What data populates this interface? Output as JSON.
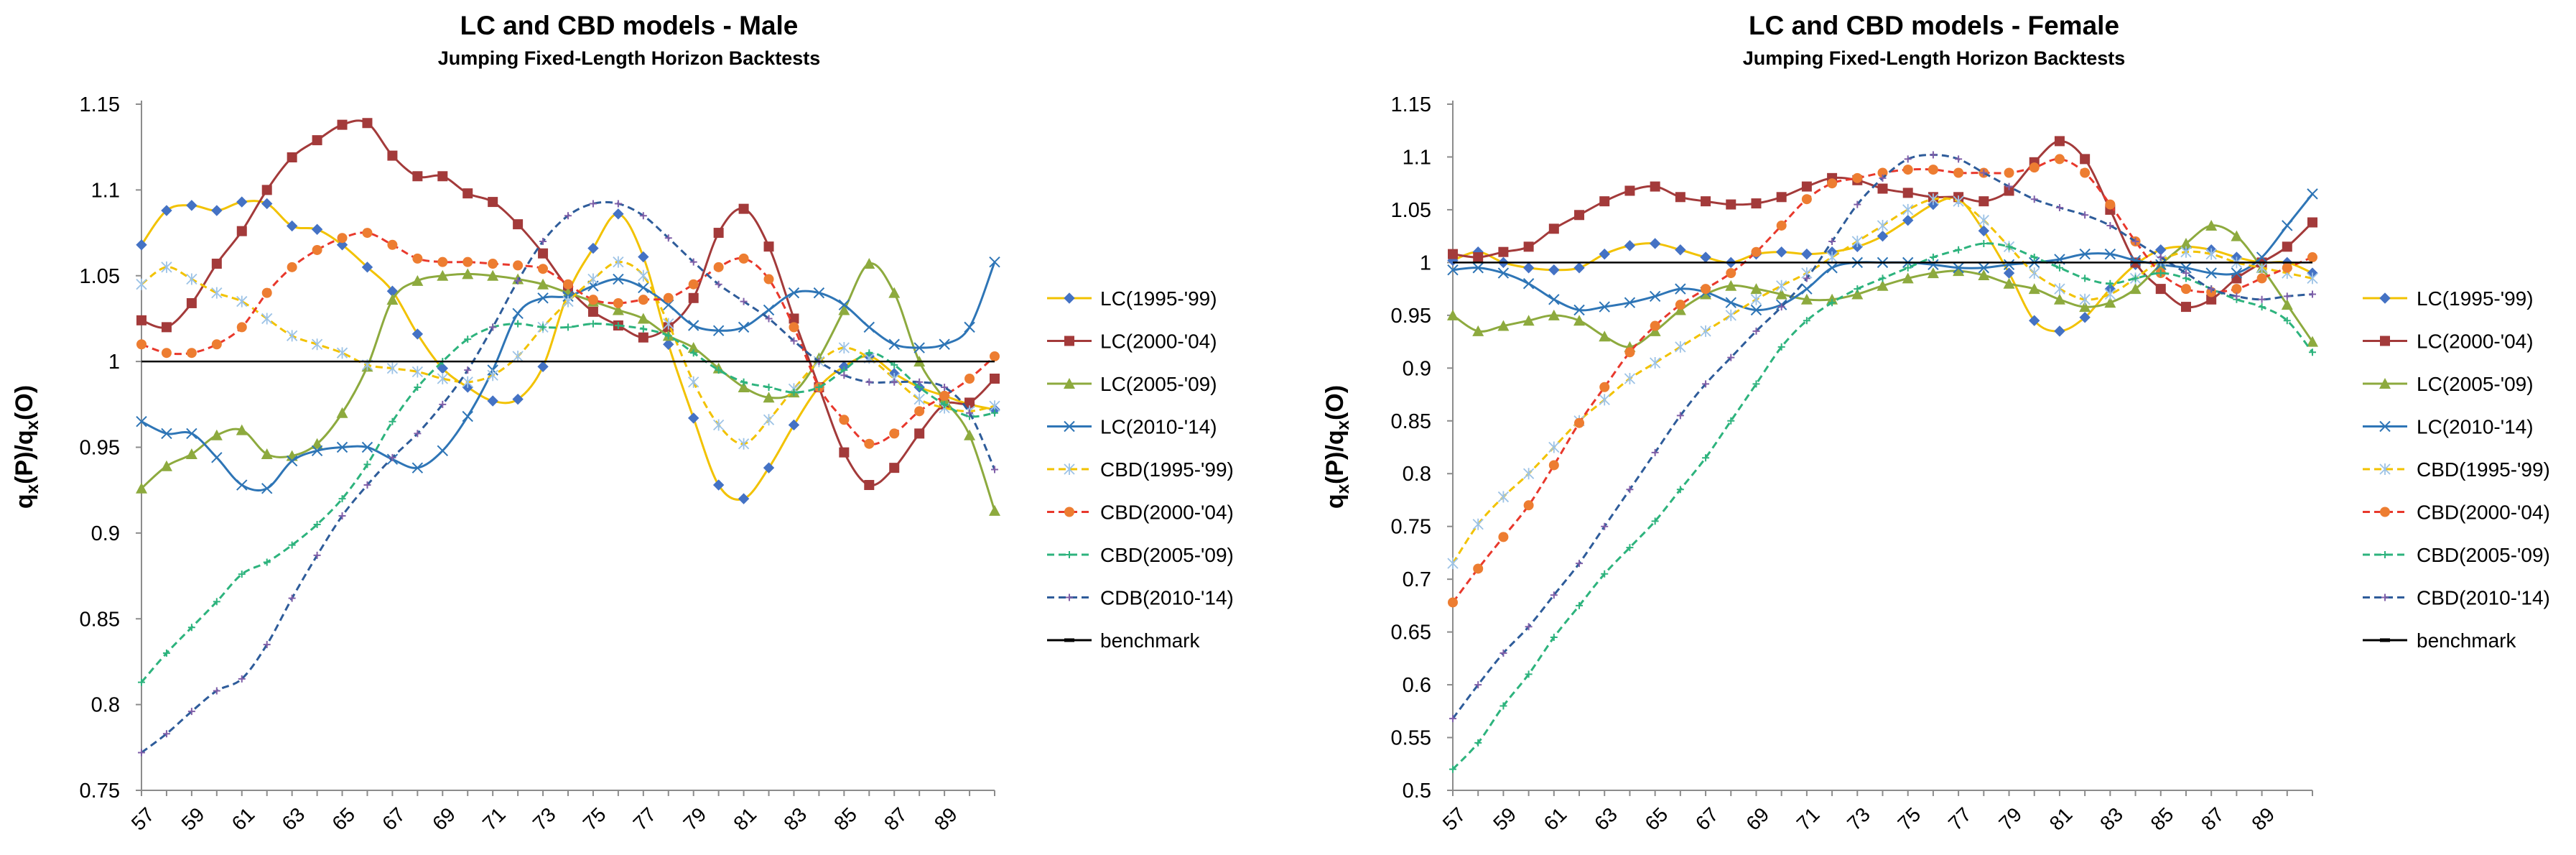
{
  "chart_data": [
    {
      "type": "line",
      "title": "LC and CBD models - Male",
      "subtitle": "Jumping Fixed-Length Horizon Backtests",
      "xlabel": "",
      "ylabel": "qₓ(P)/qₓ(O)",
      "ylabel_main": "q",
      "ylabel_sub": "x",
      "ylabel_mid": "(P)/q",
      "ylabel_sub2": "x",
      "ylabel_end": "(O)",
      "ylim": [
        0.75,
        1.15
      ],
      "yticks": [
        "0.75",
        "0.8",
        "0.85",
        "0.9",
        "0.95",
        "1",
        "1.05",
        "1.1",
        "1.15"
      ],
      "ytick_values": [
        0.75,
        0.8,
        0.85,
        0.9,
        0.95,
        1.0,
        1.05,
        1.1,
        1.15
      ],
      "xlim": [
        57,
        91
      ],
      "xticks": [
        "57",
        "59",
        "61",
        "63",
        "65",
        "67",
        "69",
        "71",
        "73",
        "75",
        "77",
        "79",
        "81",
        "83",
        "85",
        "87",
        "89"
      ],
      "xtick_values": [
        57,
        59,
        61,
        63,
        65,
        67,
        69,
        71,
        73,
        75,
        77,
        79,
        81,
        83,
        85,
        87,
        89
      ],
      "x": [
        57,
        58,
        59,
        60,
        61,
        62,
        63,
        64,
        65,
        66,
        67,
        68,
        69,
        70,
        71,
        72,
        73,
        74,
        75,
        76,
        77,
        78,
        79,
        80,
        81,
        82,
        83,
        84,
        85,
        86,
        87,
        88,
        89,
        90,
        91
      ],
      "legend_position": "right",
      "series": [
        {
          "name": "LC(1995-'99)",
          "color": "#F2C200",
          "style": "solid",
          "marker": "diamond",
          "marker_color": "#4472C4",
          "values": [
            1.068,
            1.088,
            1.091,
            1.088,
            1.093,
            1.092,
            1.079,
            1.077,
            1.068,
            1.055,
            1.041,
            1.016,
            0.996,
            0.985,
            0.977,
            0.978,
            0.997,
            1.04,
            1.066,
            1.086,
            1.061,
            1.01,
            0.967,
            0.928,
            0.92,
            0.938,
            0.963,
            0.985,
            0.997,
            1.003,
            0.993,
            0.985,
            0.98,
            0.975,
            0.972
          ]
        },
        {
          "name": "LC(2000-'04)",
          "color": "#A33A3A",
          "style": "solid",
          "marker": "square",
          "marker_color": "#A33A3A",
          "values": [
            1.024,
            1.02,
            1.034,
            1.057,
            1.076,
            1.1,
            1.119,
            1.129,
            1.138,
            1.139,
            1.12,
            1.108,
            1.108,
            1.098,
            1.093,
            1.08,
            1.063,
            1.043,
            1.029,
            1.021,
            1.014,
            1.02,
            1.037,
            1.075,
            1.089,
            1.067,
            1.025,
            0.985,
            0.947,
            0.928,
            0.938,
            0.958,
            0.975,
            0.976,
            0.99
          ]
        },
        {
          "name": "LC(2005-'09)",
          "color": "#8DAA3E",
          "style": "solid",
          "marker": "triangle",
          "marker_color": "#8DAA3E",
          "values": [
            0.926,
            0.939,
            0.946,
            0.957,
            0.96,
            0.946,
            0.945,
            0.952,
            0.97,
            0.997,
            1.036,
            1.047,
            1.05,
            1.051,
            1.05,
            1.048,
            1.045,
            1.04,
            1.035,
            1.03,
            1.025,
            1.015,
            1.008,
            0.996,
            0.985,
            0.979,
            0.982,
            1.002,
            1.03,
            1.057,
            1.04,
            1.0,
            0.978,
            0.957,
            0.913
          ]
        },
        {
          "name": "LC(2010-'14)",
          "color": "#2E75B6",
          "style": "solid",
          "marker": "x",
          "marker_color": "#2E75B6",
          "values": [
            0.965,
            0.958,
            0.958,
            0.944,
            0.928,
            0.926,
            0.942,
            0.948,
            0.95,
            0.95,
            0.943,
            0.938,
            0.948,
            0.968,
            0.995,
            1.028,
            1.037,
            1.038,
            1.044,
            1.048,
            1.043,
            1.033,
            1.021,
            1.018,
            1.02,
            1.03,
            1.04,
            1.04,
            1.033,
            1.02,
            1.01,
            1.008,
            1.01,
            1.02,
            1.058
          ]
        },
        {
          "name": "CBD(1995-'99)",
          "color": "#F2C200",
          "style": "dash",
          "marker": "star",
          "marker_color": "#9DC3E6",
          "values": [
            1.045,
            1.055,
            1.048,
            1.04,
            1.035,
            1.025,
            1.015,
            1.01,
            1.005,
            0.998,
            0.996,
            0.994,
            0.99,
            0.988,
            0.992,
            1.003,
            1.02,
            1.035,
            1.048,
            1.058,
            1.05,
            1.022,
            0.988,
            0.963,
            0.952,
            0.966,
            0.984,
            1.0,
            1.008,
            1.002,
            0.99,
            0.978,
            0.973,
            0.971,
            0.974
          ]
        },
        {
          "name": "CBD(2000-'04)",
          "color": "#E8382C",
          "style": "dash",
          "marker": "circle",
          "marker_color": "#ED7D31",
          "values": [
            1.01,
            1.005,
            1.005,
            1.01,
            1.02,
            1.04,
            1.055,
            1.065,
            1.072,
            1.075,
            1.068,
            1.06,
            1.058,
            1.058,
            1.057,
            1.056,
            1.054,
            1.045,
            1.036,
            1.034,
            1.036,
            1.037,
            1.045,
            1.055,
            1.06,
            1.048,
            1.02,
            0.985,
            0.966,
            0.952,
            0.958,
            0.971,
            0.98,
            0.99,
            1.003
          ]
        },
        {
          "name": "CBD(2005-'09)",
          "color": "#2DB37D",
          "style": "dash",
          "marker": "plus",
          "marker_color": "#2DB37D",
          "values": [
            0.813,
            0.83,
            0.845,
            0.86,
            0.876,
            0.883,
            0.893,
            0.905,
            0.92,
            0.94,
            0.965,
            0.985,
            1.0,
            1.013,
            1.02,
            1.022,
            1.02,
            1.02,
            1.022,
            1.021,
            1.019,
            1.015,
            1.005,
            0.995,
            0.988,
            0.985,
            0.982,
            0.985,
            0.995,
            1.005,
            0.998,
            0.985,
            0.975,
            0.968,
            0.97
          ]
        },
        {
          "name": "CDB(2010-'14)",
          "color": "#2E5C9A",
          "style": "dash",
          "marker": "plus",
          "marker_color": "#7F5FA8",
          "values": [
            0.772,
            0.783,
            0.796,
            0.808,
            0.815,
            0.835,
            0.862,
            0.887,
            0.91,
            0.928,
            0.944,
            0.958,
            0.975,
            0.995,
            1.02,
            1.047,
            1.07,
            1.085,
            1.092,
            1.092,
            1.085,
            1.072,
            1.058,
            1.045,
            1.035,
            1.025,
            1.012,
            1.0,
            0.992,
            0.988,
            0.988,
            0.988,
            0.985,
            0.97,
            0.937
          ]
        },
        {
          "name": "benchmark",
          "color": "#000000",
          "style": "solid",
          "marker": "dash",
          "marker_color": "#000000",
          "values": [
            1,
            1,
            1,
            1,
            1,
            1,
            1,
            1,
            1,
            1,
            1,
            1,
            1,
            1,
            1,
            1,
            1,
            1,
            1,
            1,
            1,
            1,
            1,
            1,
            1,
            1,
            1,
            1,
            1,
            1,
            1,
            1,
            1,
            1,
            1
          ]
        }
      ]
    },
    {
      "type": "line",
      "title": "LC and CBD models - Female",
      "subtitle": "Jumping Fixed-Length Horizon Backtests",
      "xlabel": "",
      "ylabel": "qₓ(P)/qₓ(O)",
      "ylabel_main": "q",
      "ylabel_sub": "x",
      "ylabel_mid": "(P)/q",
      "ylabel_sub2": "x",
      "ylabel_end": "(O)",
      "ylim": [
        0.5,
        1.15
      ],
      "yticks": [
        "0.5",
        "0.55",
        "0.6",
        "0.65",
        "0.7",
        "0.75",
        "0.8",
        "0.85",
        "0.9",
        "0.95",
        "1",
        "1.05",
        "1.1",
        "1.15"
      ],
      "ytick_values": [
        0.5,
        0.55,
        0.6,
        0.65,
        0.7,
        0.75,
        0.8,
        0.85,
        0.9,
        0.95,
        1.0,
        1.05,
        1.1,
        1.15
      ],
      "xlim": [
        57,
        91
      ],
      "xticks": [
        "57",
        "59",
        "61",
        "63",
        "65",
        "67",
        "69",
        "71",
        "73",
        "75",
        "77",
        "79",
        "81",
        "83",
        "85",
        "87",
        "89"
      ],
      "xtick_values": [
        57,
        59,
        61,
        63,
        65,
        67,
        69,
        71,
        73,
        75,
        77,
        79,
        81,
        83,
        85,
        87,
        89
      ],
      "x": [
        57,
        58,
        59,
        60,
        61,
        62,
        63,
        64,
        65,
        66,
        67,
        68,
        69,
        70,
        71,
        72,
        73,
        74,
        75,
        76,
        77,
        78,
        79,
        80,
        81,
        82,
        83,
        84,
        85,
        86,
        87,
        88,
        89,
        90,
        91
      ],
      "legend_position": "right",
      "series": [
        {
          "name": "LC(1995-'99)",
          "color": "#F2C200",
          "style": "solid",
          "marker": "diamond",
          "marker_color": "#4472C4",
          "values": [
            1.002,
            1.01,
            1.0,
            0.995,
            0.993,
            0.995,
            1.008,
            1.016,
            1.018,
            1.012,
            1.005,
            1.0,
            1.008,
            1.01,
            1.008,
            1.01,
            1.015,
            1.025,
            1.04,
            1.055,
            1.06,
            1.03,
            0.99,
            0.945,
            0.935,
            0.948,
            0.975,
            0.998,
            1.012,
            1.015,
            1.012,
            1.005,
            1.0,
            1.0,
            0.99
          ]
        },
        {
          "name": "LC(2000-'04)",
          "color": "#A33A3A",
          "style": "solid",
          "marker": "square",
          "marker_color": "#A33A3A",
          "values": [
            1.008,
            1.005,
            1.01,
            1.015,
            1.032,
            1.045,
            1.058,
            1.068,
            1.072,
            1.062,
            1.058,
            1.055,
            1.056,
            1.062,
            1.072,
            1.08,
            1.078,
            1.07,
            1.066,
            1.062,
            1.062,
            1.058,
            1.068,
            1.095,
            1.115,
            1.098,
            1.05,
            1.0,
            0.975,
            0.958,
            0.965,
            0.985,
            1.0,
            1.015,
            1.038
          ]
        },
        {
          "name": "LC(2005-'09)",
          "color": "#8DAA3E",
          "style": "solid",
          "marker": "triangle",
          "marker_color": "#8DAA3E",
          "values": [
            0.95,
            0.935,
            0.94,
            0.945,
            0.95,
            0.945,
            0.93,
            0.92,
            0.935,
            0.955,
            0.97,
            0.978,
            0.975,
            0.97,
            0.965,
            0.965,
            0.97,
            0.978,
            0.985,
            0.99,
            0.992,
            0.988,
            0.98,
            0.975,
            0.965,
            0.958,
            0.962,
            0.975,
            0.998,
            1.018,
            1.035,
            1.025,
            0.995,
            0.96,
            0.925
          ]
        },
        {
          "name": "LC(2010-'14)",
          "color": "#2E75B6",
          "style": "solid",
          "marker": "x",
          "marker_color": "#2E75B6",
          "values": [
            0.993,
            0.995,
            0.99,
            0.98,
            0.965,
            0.955,
            0.958,
            0.962,
            0.968,
            0.975,
            0.972,
            0.962,
            0.955,
            0.96,
            0.975,
            0.995,
            1.0,
            1.0,
            1.0,
            0.998,
            0.995,
            0.995,
            0.998,
            1.0,
            1.003,
            1.008,
            1.008,
            1.002,
            0.998,
            0.995,
            0.99,
            0.99,
            1.005,
            1.035,
            1.065
          ]
        },
        {
          "name": "CBD(1995-'99)",
          "color": "#F2C200",
          "style": "dash",
          "marker": "star",
          "marker_color": "#9DC3E6",
          "values": [
            0.715,
            0.752,
            0.778,
            0.8,
            0.825,
            0.85,
            0.87,
            0.89,
            0.905,
            0.92,
            0.935,
            0.95,
            0.965,
            0.978,
            0.99,
            1.005,
            1.02,
            1.035,
            1.05,
            1.06,
            1.058,
            1.04,
            1.015,
            0.99,
            0.975,
            0.965,
            0.97,
            0.985,
            1.002,
            1.01,
            1.008,
            1.0,
            0.995,
            0.99,
            0.985
          ]
        },
        {
          "name": "CBD(2000-'04)",
          "color": "#E8382C",
          "style": "dash",
          "marker": "circle",
          "marker_color": "#ED7D31",
          "values": [
            0.678,
            0.71,
            0.74,
            0.77,
            0.808,
            0.848,
            0.882,
            0.915,
            0.94,
            0.96,
            0.975,
            0.99,
            1.01,
            1.035,
            1.06,
            1.075,
            1.08,
            1.085,
            1.088,
            1.088,
            1.085,
            1.085,
            1.085,
            1.09,
            1.098,
            1.085,
            1.055,
            1.02,
            0.99,
            0.975,
            0.972,
            0.975,
            0.985,
            0.995,
            1.005
          ]
        },
        {
          "name": "CBD(2005-'09)",
          "color": "#2DB37D",
          "style": "dash",
          "marker": "plus",
          "marker_color": "#2DB37D",
          "values": [
            0.52,
            0.545,
            0.58,
            0.61,
            0.645,
            0.675,
            0.705,
            0.73,
            0.755,
            0.785,
            0.815,
            0.85,
            0.885,
            0.92,
            0.945,
            0.962,
            0.975,
            0.985,
            0.995,
            1.005,
            1.012,
            1.018,
            1.015,
            1.005,
            0.995,
            0.985,
            0.98,
            0.985,
            0.99,
            0.985,
            0.975,
            0.965,
            0.958,
            0.945,
            0.915
          ]
        },
        {
          "name": "CBD(2010-'14)",
          "color": "#2E5C9A",
          "style": "dash",
          "marker": "plus",
          "marker_color": "#7F5FA8",
          "values": [
            0.568,
            0.6,
            0.63,
            0.655,
            0.685,
            0.715,
            0.75,
            0.785,
            0.82,
            0.855,
            0.885,
            0.91,
            0.935,
            0.958,
            0.985,
            1.02,
            1.055,
            1.08,
            1.098,
            1.102,
            1.098,
            1.085,
            1.072,
            1.06,
            1.052,
            1.045,
            1.035,
            1.02,
            1.005,
            0.99,
            0.975,
            0.968,
            0.965,
            0.968,
            0.97
          ]
        },
        {
          "name": "benchmark",
          "color": "#000000",
          "style": "solid",
          "marker": "dash",
          "marker_color": "#000000",
          "values": [
            1,
            1,
            1,
            1,
            1,
            1,
            1,
            1,
            1,
            1,
            1,
            1,
            1,
            1,
            1,
            1,
            1,
            1,
            1,
            1,
            1,
            1,
            1,
            1,
            1,
            1,
            1,
            1,
            1,
            1,
            1,
            1,
            1,
            1,
            1
          ]
        }
      ]
    }
  ]
}
